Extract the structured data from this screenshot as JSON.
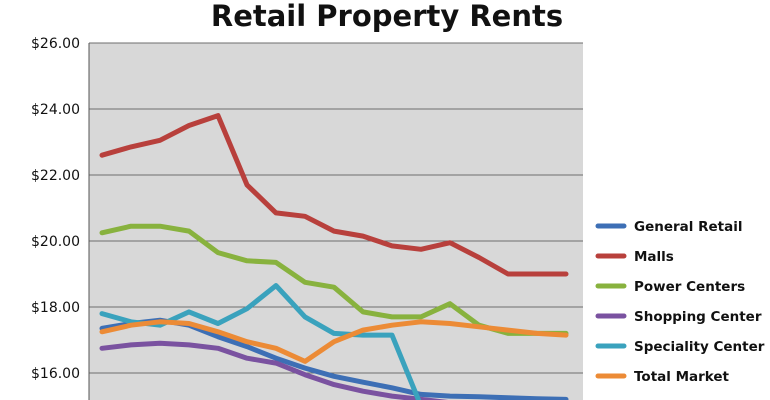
{
  "chart_data": {
    "type": "line",
    "title": "Retail Property Rents",
    "xlabel": "",
    "ylabel": "",
    "ylim": [
      15.0,
      26.0
    ],
    "y_ticks": [
      "$26.00",
      "$24.00",
      "$22.00",
      "$20.00",
      "$18.00",
      "$16.00"
    ],
    "y_tick_values": [
      26,
      24,
      22,
      20,
      18,
      16
    ],
    "grid": true,
    "plot_background": "#d8d8d8",
    "legend_position": "right",
    "x": [
      1,
      2,
      3,
      4,
      5,
      6,
      7,
      8,
      9,
      10,
      11,
      12,
      13,
      14,
      15,
      16,
      17
    ],
    "series": [
      {
        "name": "General Retail",
        "color": "#3d6fb5",
        "values": [
          17.35,
          17.5,
          17.6,
          17.45,
          17.1,
          16.8,
          16.45,
          16.15,
          15.9,
          15.72,
          15.55,
          15.35,
          15.3,
          15.28,
          15.25,
          15.22,
          15.2
        ]
      },
      {
        "name": "Malls",
        "color": "#b8403c",
        "values": [
          22.6,
          22.85,
          23.05,
          23.5,
          23.8,
          21.7,
          20.85,
          20.75,
          20.3,
          20.15,
          19.85,
          19.75,
          19.95,
          19.5,
          19.0,
          19.0,
          19.0
        ]
      },
      {
        "name": "Power Centers",
        "color": "#88b23e",
        "values": [
          20.25,
          20.45,
          20.45,
          20.3,
          19.65,
          19.4,
          19.35,
          18.75,
          18.6,
          17.85,
          17.7,
          17.7,
          18.1,
          17.45,
          17.2,
          17.2,
          17.2
        ]
      },
      {
        "name": "Shopping Center",
        "color": "#7a52a0",
        "values": [
          16.75,
          16.85,
          16.9,
          16.85,
          16.75,
          16.45,
          16.3,
          15.95,
          15.65,
          15.45,
          15.3,
          15.2,
          15.1,
          15.0,
          15.0,
          15.0,
          15.0
        ]
      },
      {
        "name": "Speciality Center",
        "color": "#3aa2bd",
        "values": [
          17.8,
          17.55,
          17.45,
          17.85,
          17.5,
          17.95,
          18.65,
          17.7,
          17.2,
          17.15,
          17.15,
          15.0,
          15.0,
          15.0,
          15.0,
          15.0,
          15.0
        ]
      },
      {
        "name": "Total Market",
        "color": "#ec8b36",
        "values": [
          17.25,
          17.45,
          17.55,
          17.5,
          17.25,
          16.95,
          16.75,
          16.35,
          16.95,
          17.3,
          17.45,
          17.55,
          17.5,
          17.4,
          17.3,
          17.2,
          17.15
        ]
      }
    ]
  }
}
